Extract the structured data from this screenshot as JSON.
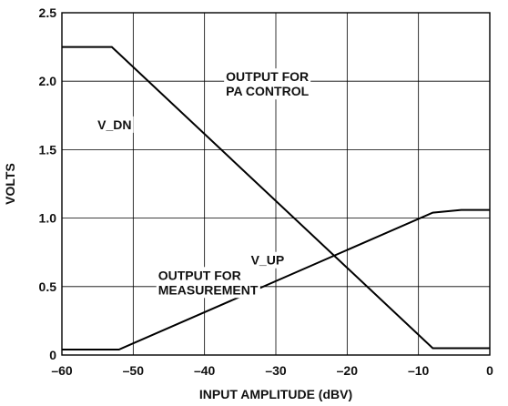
{
  "chart_data": {
    "type": "line",
    "title": "",
    "xlabel": "INPUT AMPLITUDE (dBV)",
    "ylabel": "VOLTS",
    "xlim": [
      -60,
      0
    ],
    "ylim": [
      0,
      2.5
    ],
    "grid": true,
    "x_ticks": [
      "–60",
      "–50",
      "–40",
      "–30",
      "–20",
      "–10",
      "0"
    ],
    "x_tick_values": [
      -60,
      -50,
      -40,
      -30,
      -20,
      -10,
      0
    ],
    "y_ticks": [
      "0",
      "0.5",
      "1.0",
      "1.5",
      "2.0",
      "2.5"
    ],
    "y_tick_values": [
      0,
      0.5,
      1.0,
      1.5,
      2.0,
      2.5
    ],
    "series": [
      {
        "name": "V_DN",
        "x": [
          -60,
          -53,
          -8,
          0
        ],
        "y": [
          2.25,
          2.25,
          0.05,
          0.05
        ]
      },
      {
        "name": "V_UP",
        "x": [
          -60,
          -52,
          -8,
          -4,
          0
        ],
        "y": [
          0.04,
          0.04,
          1.04,
          1.06,
          1.06
        ]
      }
    ],
    "annotations": [
      {
        "lines": [
          "OUTPUT FOR",
          "PA CONTROL"
        ],
        "x": -37,
        "y": 2.0
      },
      {
        "lines": [
          "V_DN"
        ],
        "x": -55,
        "y": 1.65
      },
      {
        "lines": [
          "V_UP"
        ],
        "x": -33.5,
        "y": 0.66
      },
      {
        "lines": [
          "OUTPUT FOR",
          "MEASUREMENT"
        ],
        "x": -46.5,
        "y": 0.55
      }
    ]
  }
}
